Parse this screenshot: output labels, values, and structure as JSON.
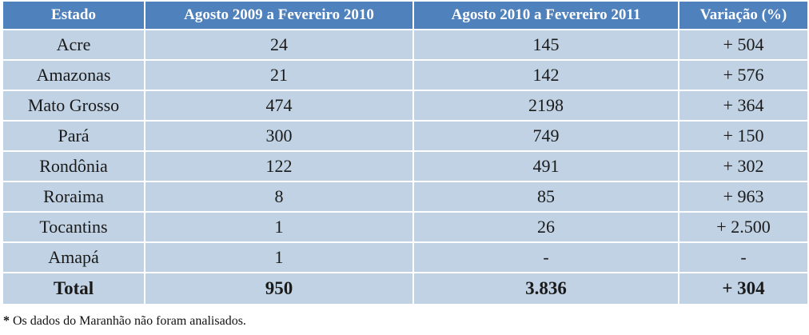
{
  "table": {
    "headers": [
      "Estado",
      "Agosto 2009 a Fevereiro 2010",
      "Agosto 2010 a Fevereiro  2011",
      "Variação (%)"
    ],
    "rows": [
      [
        "Acre",
        "24",
        "145",
        "+ 504"
      ],
      [
        "Amazonas",
        "21",
        "142",
        "+ 576"
      ],
      [
        "Mato Grosso",
        "474",
        "2198",
        "+ 364"
      ],
      [
        "Pará",
        "300",
        "749",
        "+ 150"
      ],
      [
        "Rondônia",
        "122",
        "491",
        "+ 302"
      ],
      [
        "Roraima",
        "8",
        "85",
        "+ 963"
      ],
      [
        "Tocantins",
        "1",
        "26",
        "+ 2.500"
      ],
      [
        "Amapá",
        "1",
        "-",
        "-"
      ]
    ],
    "total": [
      "Total",
      "950",
      "3.836",
      "+ 304"
    ]
  },
  "footnote": {
    "marker": "*",
    "text": " Os dados do Maranhão não foram analisados."
  },
  "colors": {
    "header_bg": "#4f81bd",
    "cell_bg": "#c0d2e3"
  }
}
